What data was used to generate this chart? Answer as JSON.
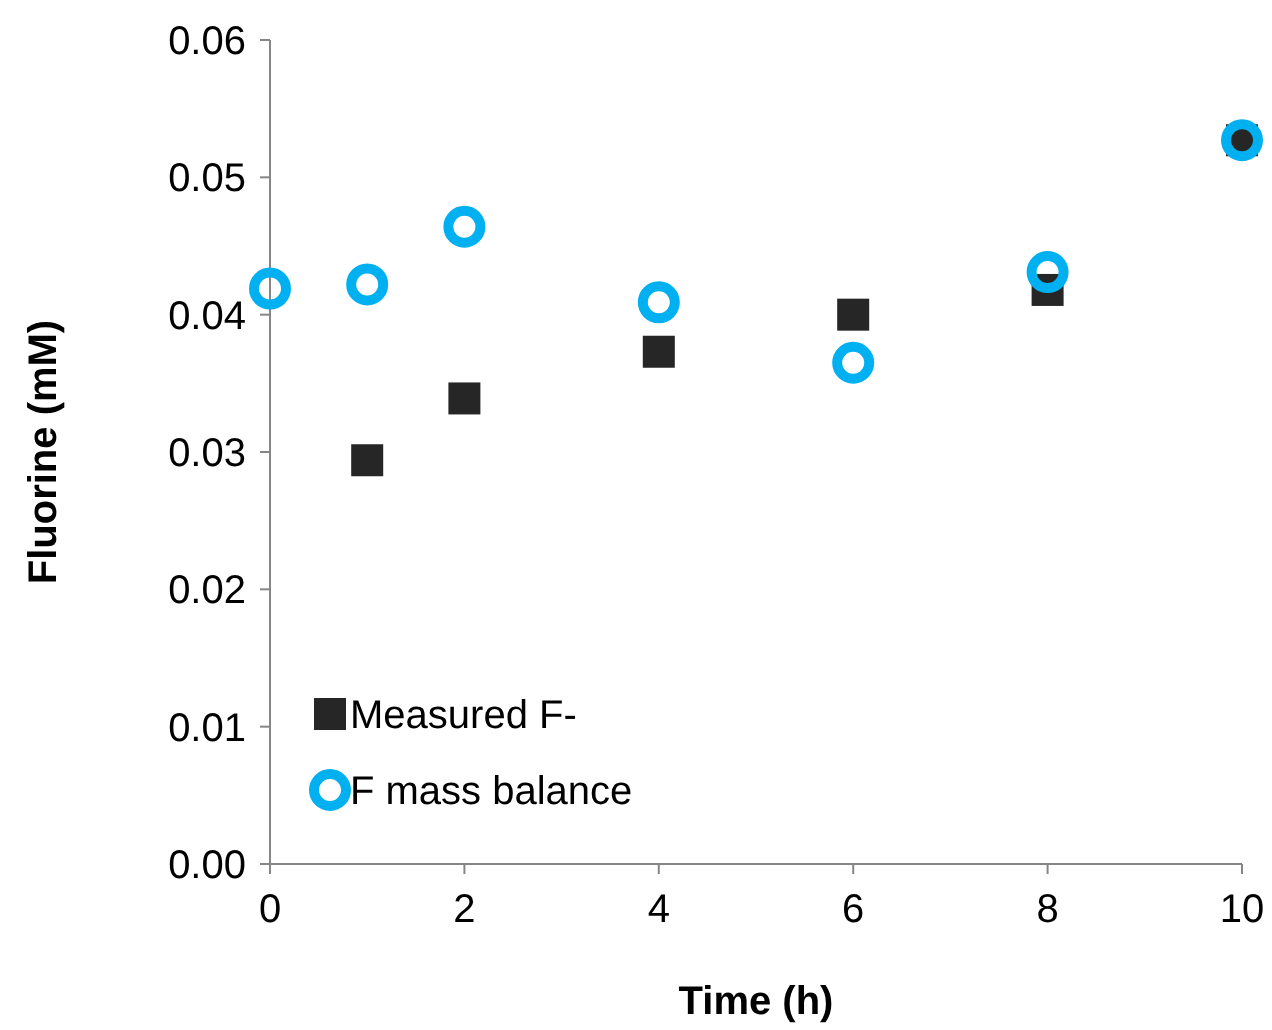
{
  "chart_data": {
    "type": "scatter",
    "xlabel": "Time (h)",
    "ylabel": "Fluorine (mM)",
    "xlim": [
      0,
      10
    ],
    "xticks": [
      0,
      2,
      4,
      6,
      8,
      10
    ],
    "ylim": [
      0,
      0.06
    ],
    "yticks": [
      {
        "value": 0,
        "label": "0.00"
      },
      {
        "value": 0.01,
        "label": "0.01"
      },
      {
        "value": 0.02,
        "label": "0.02"
      },
      {
        "value": 0.03,
        "label": "0.03"
      },
      {
        "value": 0.04,
        "label": "0.04"
      },
      {
        "value": 0.05,
        "label": "0.05"
      },
      {
        "value": 0.06,
        "label": "0.06"
      }
    ],
    "grid": false,
    "legend": "bottom left",
    "series": [
      {
        "name": "Measured F-",
        "color": "#262626",
        "marker": "square",
        "x": [
          1,
          2,
          4,
          6,
          8,
          10
        ],
        "values": [
          0.0294,
          0.0339,
          0.0373,
          0.04,
          0.0418,
          0.0527
        ]
      },
      {
        "name": "F mass balance",
        "color": "#00b0f0",
        "marker": "circle",
        "x": [
          0,
          1,
          2,
          4,
          6,
          8,
          10
        ],
        "values": [
          0.0419,
          0.0422,
          0.0464,
          0.0409,
          0.0365,
          0.0431,
          0.0527
        ]
      }
    ]
  }
}
